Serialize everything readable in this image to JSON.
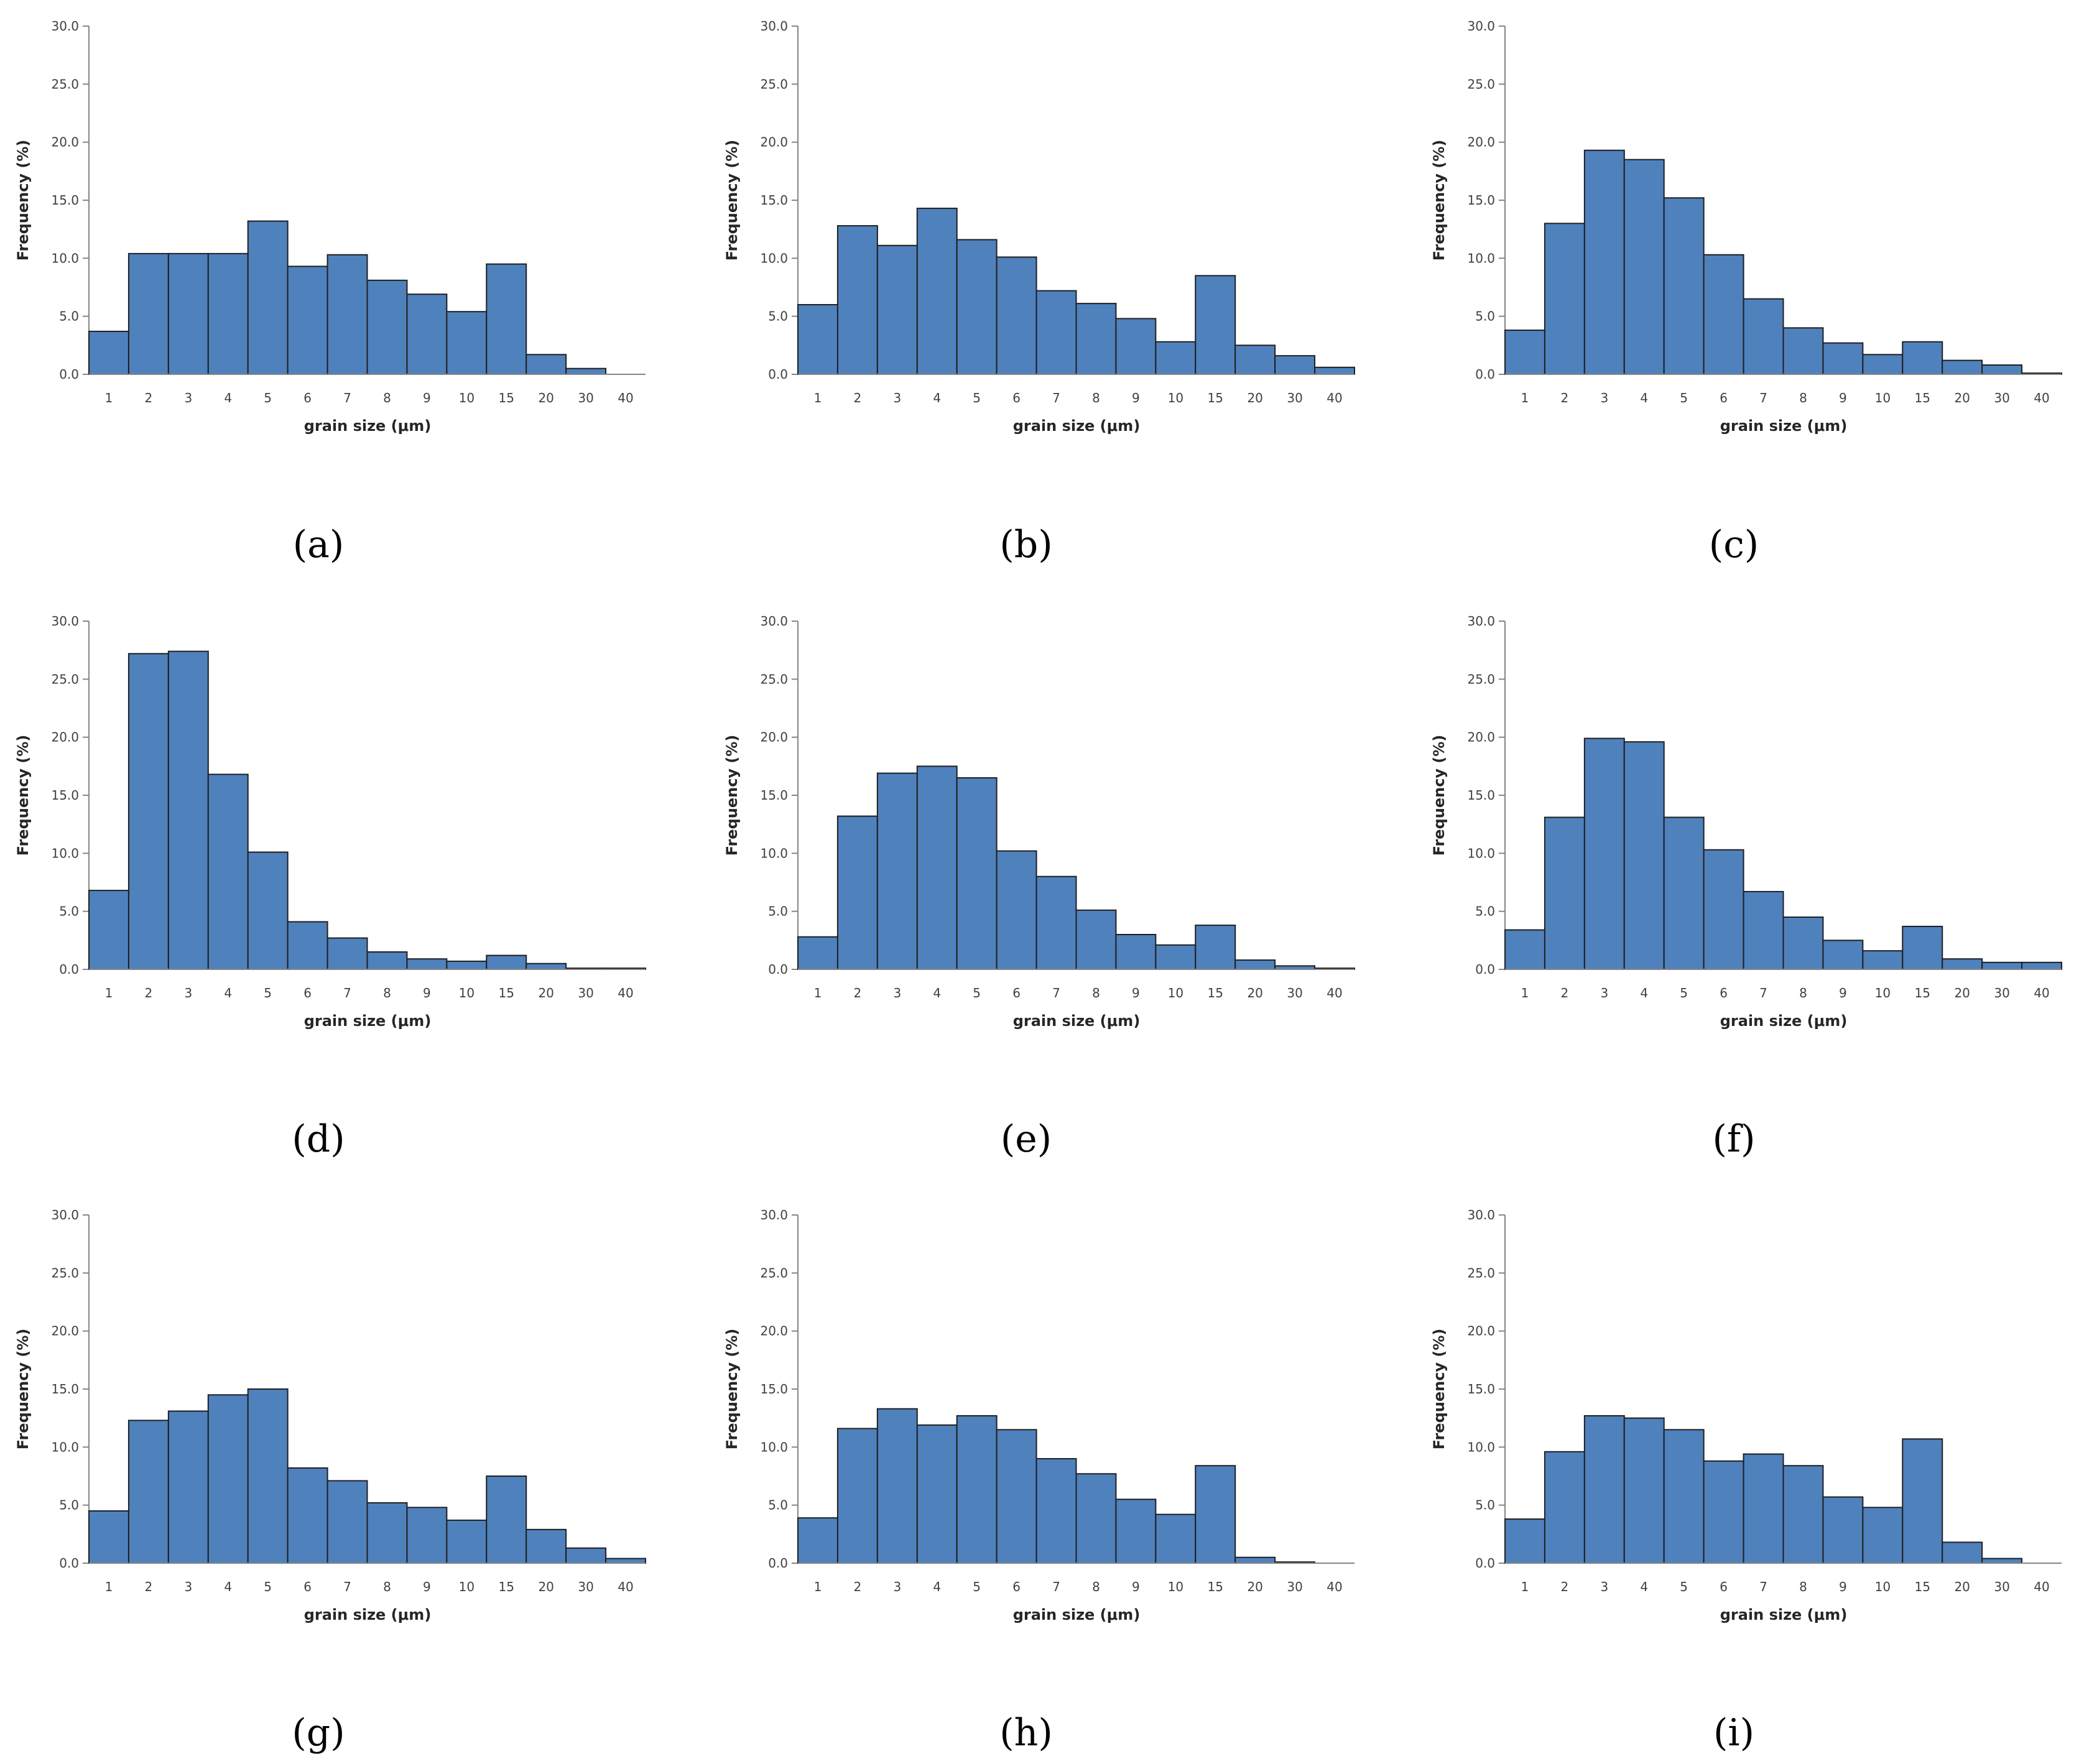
{
  "chart_data": [
    {
      "panel_label": "(a)",
      "type": "bar",
      "categories": [
        "1",
        "2",
        "3",
        "4",
        "5",
        "6",
        "7",
        "8",
        "9",
        "10",
        "15",
        "20",
        "30",
        "40"
      ],
      "values": [
        3.7,
        10.4,
        10.4,
        10.4,
        13.2,
        9.3,
        10.3,
        8.1,
        6.9,
        5.4,
        9.5,
        1.7,
        0.5,
        0.0
      ],
      "ylim": [
        0,
        30
      ],
      "yticks": [
        "0.0",
        "5.0",
        "10.0",
        "15.0",
        "20.0",
        "25.0",
        "30.0"
      ],
      "xlabel": "grain size (μm)",
      "ylabel": "Frequency (%)",
      "bar_color": "#4f81bd"
    },
    {
      "panel_label": "(b)",
      "type": "bar",
      "categories": [
        "1",
        "2",
        "3",
        "4",
        "5",
        "6",
        "7",
        "8",
        "9",
        "10",
        "15",
        "20",
        "30",
        "40"
      ],
      "values": [
        6.0,
        12.8,
        11.1,
        14.3,
        11.6,
        10.1,
        7.2,
        6.1,
        4.8,
        2.8,
        8.5,
        2.5,
        1.6,
        0.6
      ],
      "ylim": [
        0,
        30
      ],
      "yticks": [
        "0.0",
        "5.0",
        "10.0",
        "15.0",
        "20.0",
        "25.0",
        "30.0"
      ],
      "xlabel": "grain size (μm)",
      "ylabel": "Frequency (%)",
      "bar_color": "#4f81bd"
    },
    {
      "panel_label": "(c)",
      "type": "bar",
      "categories": [
        "1",
        "2",
        "3",
        "4",
        "5",
        "6",
        "7",
        "8",
        "9",
        "10",
        "15",
        "20",
        "30",
        "40"
      ],
      "values": [
        3.8,
        13.0,
        19.3,
        18.5,
        15.2,
        10.3,
        6.5,
        4.0,
        2.7,
        1.7,
        2.8,
        1.2,
        0.8,
        0.1
      ],
      "ylim": [
        0,
        30
      ],
      "yticks": [
        "0.0",
        "5.0",
        "10.0",
        "15.0",
        "20.0",
        "25.0",
        "30.0"
      ],
      "xlabel": "grain size (μm)",
      "ylabel": "Frequency (%)",
      "bar_color": "#4f81bd"
    },
    {
      "panel_label": "(d)",
      "type": "bar",
      "categories": [
        "1",
        "2",
        "3",
        "4",
        "5",
        "6",
        "7",
        "8",
        "9",
        "10",
        "15",
        "20",
        "30",
        "40"
      ],
      "values": [
        6.8,
        27.2,
        27.4,
        16.8,
        10.1,
        4.1,
        2.7,
        1.5,
        0.9,
        0.7,
        1.2,
        0.5,
        0.1,
        0.1
      ],
      "ylim": [
        0,
        30
      ],
      "yticks": [
        "0.0",
        "5.0",
        "10.0",
        "15.0",
        "20.0",
        "25.0",
        "30.0"
      ],
      "xlabel": "grain size (μm)",
      "ylabel": "Frequency (%)",
      "bar_color": "#4f81bd"
    },
    {
      "panel_label": "(e)",
      "type": "bar",
      "categories": [
        "1",
        "2",
        "3",
        "4",
        "5",
        "6",
        "7",
        "8",
        "9",
        "10",
        "15",
        "20",
        "30",
        "40"
      ],
      "values": [
        2.8,
        13.2,
        16.9,
        17.5,
        16.5,
        10.2,
        8.0,
        5.1,
        3.0,
        2.1,
        3.8,
        0.8,
        0.3,
        0.1
      ],
      "ylim": [
        0,
        30
      ],
      "yticks": [
        "0.0",
        "5.0",
        "10.0",
        "15.0",
        "20.0",
        "25.0",
        "30.0"
      ],
      "xlabel": "grain size (μm)",
      "ylabel": "Frequency (%)",
      "bar_color": "#4f81bd"
    },
    {
      "panel_label": "(f)",
      "type": "bar",
      "categories": [
        "1",
        "2",
        "3",
        "4",
        "5",
        "6",
        "7",
        "8",
        "9",
        "10",
        "15",
        "20",
        "30",
        "40"
      ],
      "values": [
        3.4,
        13.1,
        19.9,
        19.6,
        13.1,
        10.3,
        6.7,
        4.5,
        2.5,
        1.6,
        3.7,
        0.9,
        0.6,
        0.6
      ],
      "ylim": [
        0,
        30
      ],
      "yticks": [
        "0.0",
        "5.0",
        "10.0",
        "15.0",
        "20.0",
        "25.0",
        "30.0"
      ],
      "xlabel": "grain size (μm)",
      "ylabel": "Frequency (%)",
      "bar_color": "#4f81bd"
    },
    {
      "panel_label": "(g)",
      "type": "bar",
      "categories": [
        "1",
        "2",
        "3",
        "4",
        "5",
        "6",
        "7",
        "8",
        "9",
        "10",
        "15",
        "20",
        "30",
        "40"
      ],
      "values": [
        4.5,
        12.3,
        13.1,
        14.5,
        15.0,
        8.2,
        7.1,
        5.2,
        4.8,
        3.7,
        7.5,
        2.9,
        1.3,
        0.4
      ],
      "ylim": [
        0,
        30
      ],
      "yticks": [
        "0.0",
        "5.0",
        "10.0",
        "15.0",
        "20.0",
        "25.0",
        "30.0"
      ],
      "xlabel": "grain size (μm)",
      "ylabel": "Frequency (%)",
      "bar_color": "#4f81bd"
    },
    {
      "panel_label": "(h)",
      "type": "bar",
      "categories": [
        "1",
        "2",
        "3",
        "4",
        "5",
        "6",
        "7",
        "8",
        "9",
        "10",
        "15",
        "20",
        "30",
        "40"
      ],
      "values": [
        3.9,
        11.6,
        13.3,
        11.9,
        12.7,
        11.5,
        9.0,
        7.7,
        5.5,
        4.2,
        8.4,
        0.5,
        0.1,
        0.0
      ],
      "ylim": [
        0,
        30
      ],
      "yticks": [
        "0.0",
        "5.0",
        "10.0",
        "15.0",
        "20.0",
        "25.0",
        "30.0"
      ],
      "xlabel": "grain size (μm)",
      "ylabel": "Frequency (%)",
      "bar_color": "#4f81bd"
    },
    {
      "panel_label": "(i)",
      "type": "bar",
      "categories": [
        "1",
        "2",
        "3",
        "4",
        "5",
        "6",
        "7",
        "8",
        "9",
        "10",
        "15",
        "20",
        "30",
        "40"
      ],
      "values": [
        3.8,
        9.6,
        12.7,
        12.5,
        11.5,
        8.8,
        9.4,
        8.4,
        5.7,
        4.8,
        10.7,
        1.8,
        0.4,
        0.0
      ],
      "ylim": [
        0,
        30
      ],
      "yticks": [
        "0.0",
        "5.0",
        "10.0",
        "15.0",
        "20.0",
        "25.0",
        "30.0"
      ],
      "xlabel": "grain size (μm)",
      "ylabel": "Frequency (%)",
      "bar_color": "#4f81bd"
    }
  ]
}
